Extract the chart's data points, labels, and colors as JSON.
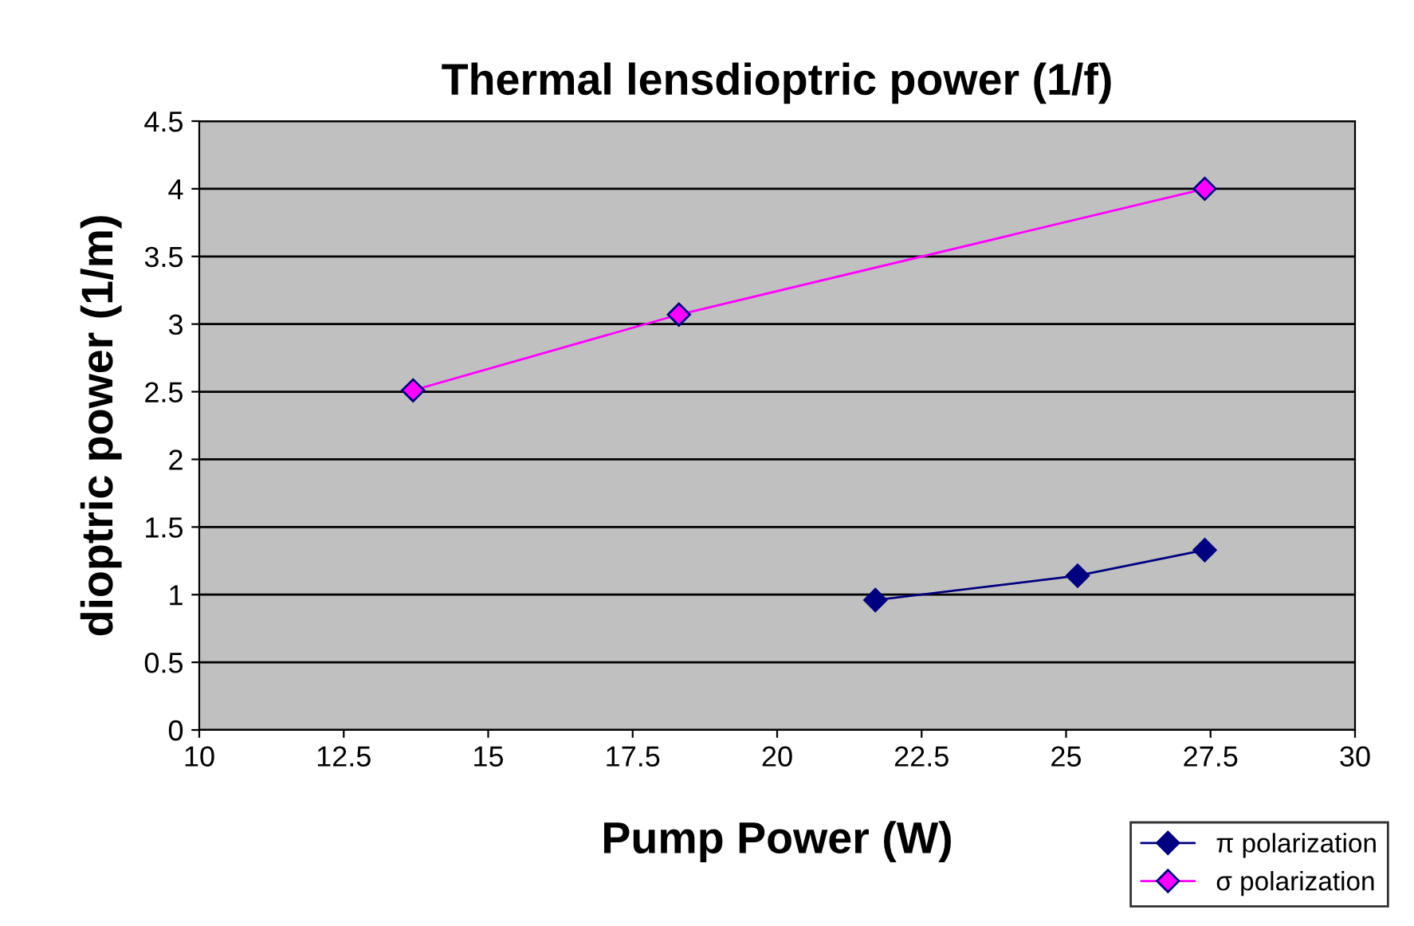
{
  "chart_data": {
    "type": "line",
    "title": "Thermal lensdioptric power (1/f)",
    "xlabel": "Pump Power (W)",
    "ylabel": "dioptric power (1/m)",
    "series": [
      {
        "name": "π polarization",
        "color": "#000080",
        "x": [
          21.7,
          25.2,
          27.4
        ],
        "values": [
          0.96,
          1.14,
          1.33
        ]
      },
      {
        "name": "σ polarization",
        "color": "#ff00ff",
        "x": [
          13.7,
          18.3,
          27.4
        ],
        "values": [
          2.51,
          3.07,
          4.0
        ]
      }
    ],
    "xlim": [
      10,
      30
    ],
    "xticks": [
      10,
      12.5,
      15,
      17.5,
      20,
      22.5,
      25,
      27.5,
      30
    ],
    "ylim": [
      0,
      4.5
    ],
    "yticks": [
      0,
      0.5,
      1,
      1.5,
      2,
      2.5,
      3,
      3.5,
      4,
      4.5
    ],
    "grid": "y",
    "legend": "bottom right",
    "marker": "diamond",
    "line_style": "solid"
  }
}
